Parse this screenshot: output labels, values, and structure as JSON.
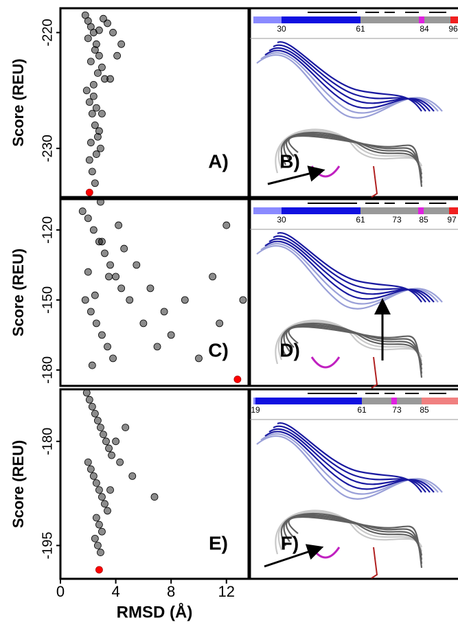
{
  "chart_data": [
    {
      "type": "scatter",
      "ylabel": "Score (REU)",
      "panel_label": "A)",
      "xlim": [
        0,
        13.6
      ],
      "ylim": [
        -234.2,
        -217.9
      ],
      "yticks": [
        -220,
        -230
      ],
      "series": [
        {
          "color": "#000000",
          "x": [
            1.8,
            2.0,
            2.2,
            2.4,
            2.6,
            2.8,
            3.0,
            3.2,
            1.9,
            2.1,
            2.3,
            2.5,
            2.7,
            2.9,
            3.1,
            2.0,
            2.2,
            2.4,
            2.6,
            2.8,
            2.1,
            2.3,
            2.5,
            2.7,
            3.4,
            3.8,
            4.1,
            2.2,
            2.6,
            3.0,
            2.4,
            2.8,
            3.6,
            4.4,
            2.5
          ],
          "values": [
            -218.5,
            -219,
            -219.5,
            -220,
            -221,
            -222,
            -223,
            -224,
            -225,
            -226,
            -227,
            -228,
            -229,
            -230,
            -218.8,
            -220.5,
            -222.5,
            -224.5,
            -226.5,
            -228.5,
            -231,
            -232,
            -221.5,
            -223.5,
            -219.2,
            -220,
            -222,
            -229.5,
            -230.5,
            -227,
            -225.5,
            -219.8,
            -224,
            -221,
            -233
          ]
        },
        {
          "color": "#ff0000",
          "x": [
            2.1
          ],
          "values": [
            -233.8
          ]
        }
      ],
      "structure": {
        "label": "B)",
        "residues": [
          "30",
          "61",
          "84",
          "96"
        ]
      }
    },
    {
      "type": "scatter",
      "ylabel": "Score (REU)",
      "panel_label": "C)",
      "xlim": [
        0,
        13.6
      ],
      "ylim": [
        -186.8,
        -106.8
      ],
      "yticks": [
        -120,
        -150,
        -180
      ],
      "series": [
        {
          "color": "#000000",
          "x": [
            1.6,
            2.0,
            2.4,
            2.8,
            3.2,
            3.6,
            4.0,
            4.4,
            1.8,
            2.2,
            2.6,
            3.0,
            3.4,
            3.8,
            4.2,
            4.6,
            2.0,
            2.5,
            3.0,
            3.5,
            5.0,
            5.5,
            6.0,
            6.5,
            7.0,
            7.5,
            8.0,
            9.0,
            10.0,
            11.0,
            11.5,
            12.0,
            13.2,
            2.3,
            2.9
          ],
          "values": [
            -112,
            -115,
            -120,
            -125,
            -130,
            -135,
            -140,
            -145,
            -150,
            -155,
            -160,
            -165,
            -170,
            -175,
            -118,
            -128,
            -138,
            -148,
            -125,
            -140,
            -150,
            -135,
            -160,
            -145,
            -170,
            -155,
            -165,
            -150,
            -175,
            -140,
            -160,
            -118,
            -150,
            -178,
            -108
          ]
        },
        {
          "color": "#ff0000",
          "x": [
            12.8
          ],
          "values": [
            -184
          ]
        }
      ],
      "structure": {
        "label": "D)",
        "residues": [
          "30",
          "61",
          "73",
          "85",
          "97"
        ]
      }
    },
    {
      "type": "scatter",
      "ylabel": "Score (REU)",
      "xlabel": "RMSD (Å)",
      "panel_label": "E)",
      "xlim": [
        0,
        13.6
      ],
      "ylim": [
        -199.8,
        -172.5
      ],
      "xticks": [
        0,
        4,
        8,
        12
      ],
      "yticks": [
        -180,
        -195
      ],
      "series": [
        {
          "color": "#000000",
          "x": [
            1.9,
            2.1,
            2.3,
            2.5,
            2.7,
            2.9,
            3.1,
            3.3,
            3.5,
            3.7,
            2.0,
            2.2,
            2.4,
            2.6,
            2.8,
            3.0,
            3.2,
            3.4,
            2.6,
            2.8,
            3.0,
            4.0,
            4.3,
            4.7,
            5.2,
            6.8,
            2.5,
            2.7,
            2.9,
            3.6
          ],
          "values": [
            -173,
            -174,
            -175,
            -176,
            -177,
            -178,
            -179,
            -180,
            -181,
            -182,
            -183,
            -184,
            -185,
            -186,
            -187,
            -188,
            -189,
            -190,
            -191,
            -192,
            -193,
            -180,
            -183,
            -178,
            -185,
            -188,
            -194,
            -195,
            -196,
            -187
          ]
        },
        {
          "color": "#ff0000",
          "x": [
            2.8
          ],
          "values": [
            -198.5
          ]
        }
      ],
      "structure": {
        "label": "F)",
        "residues": [
          "19",
          "61",
          "73",
          "85"
        ]
      }
    }
  ]
}
